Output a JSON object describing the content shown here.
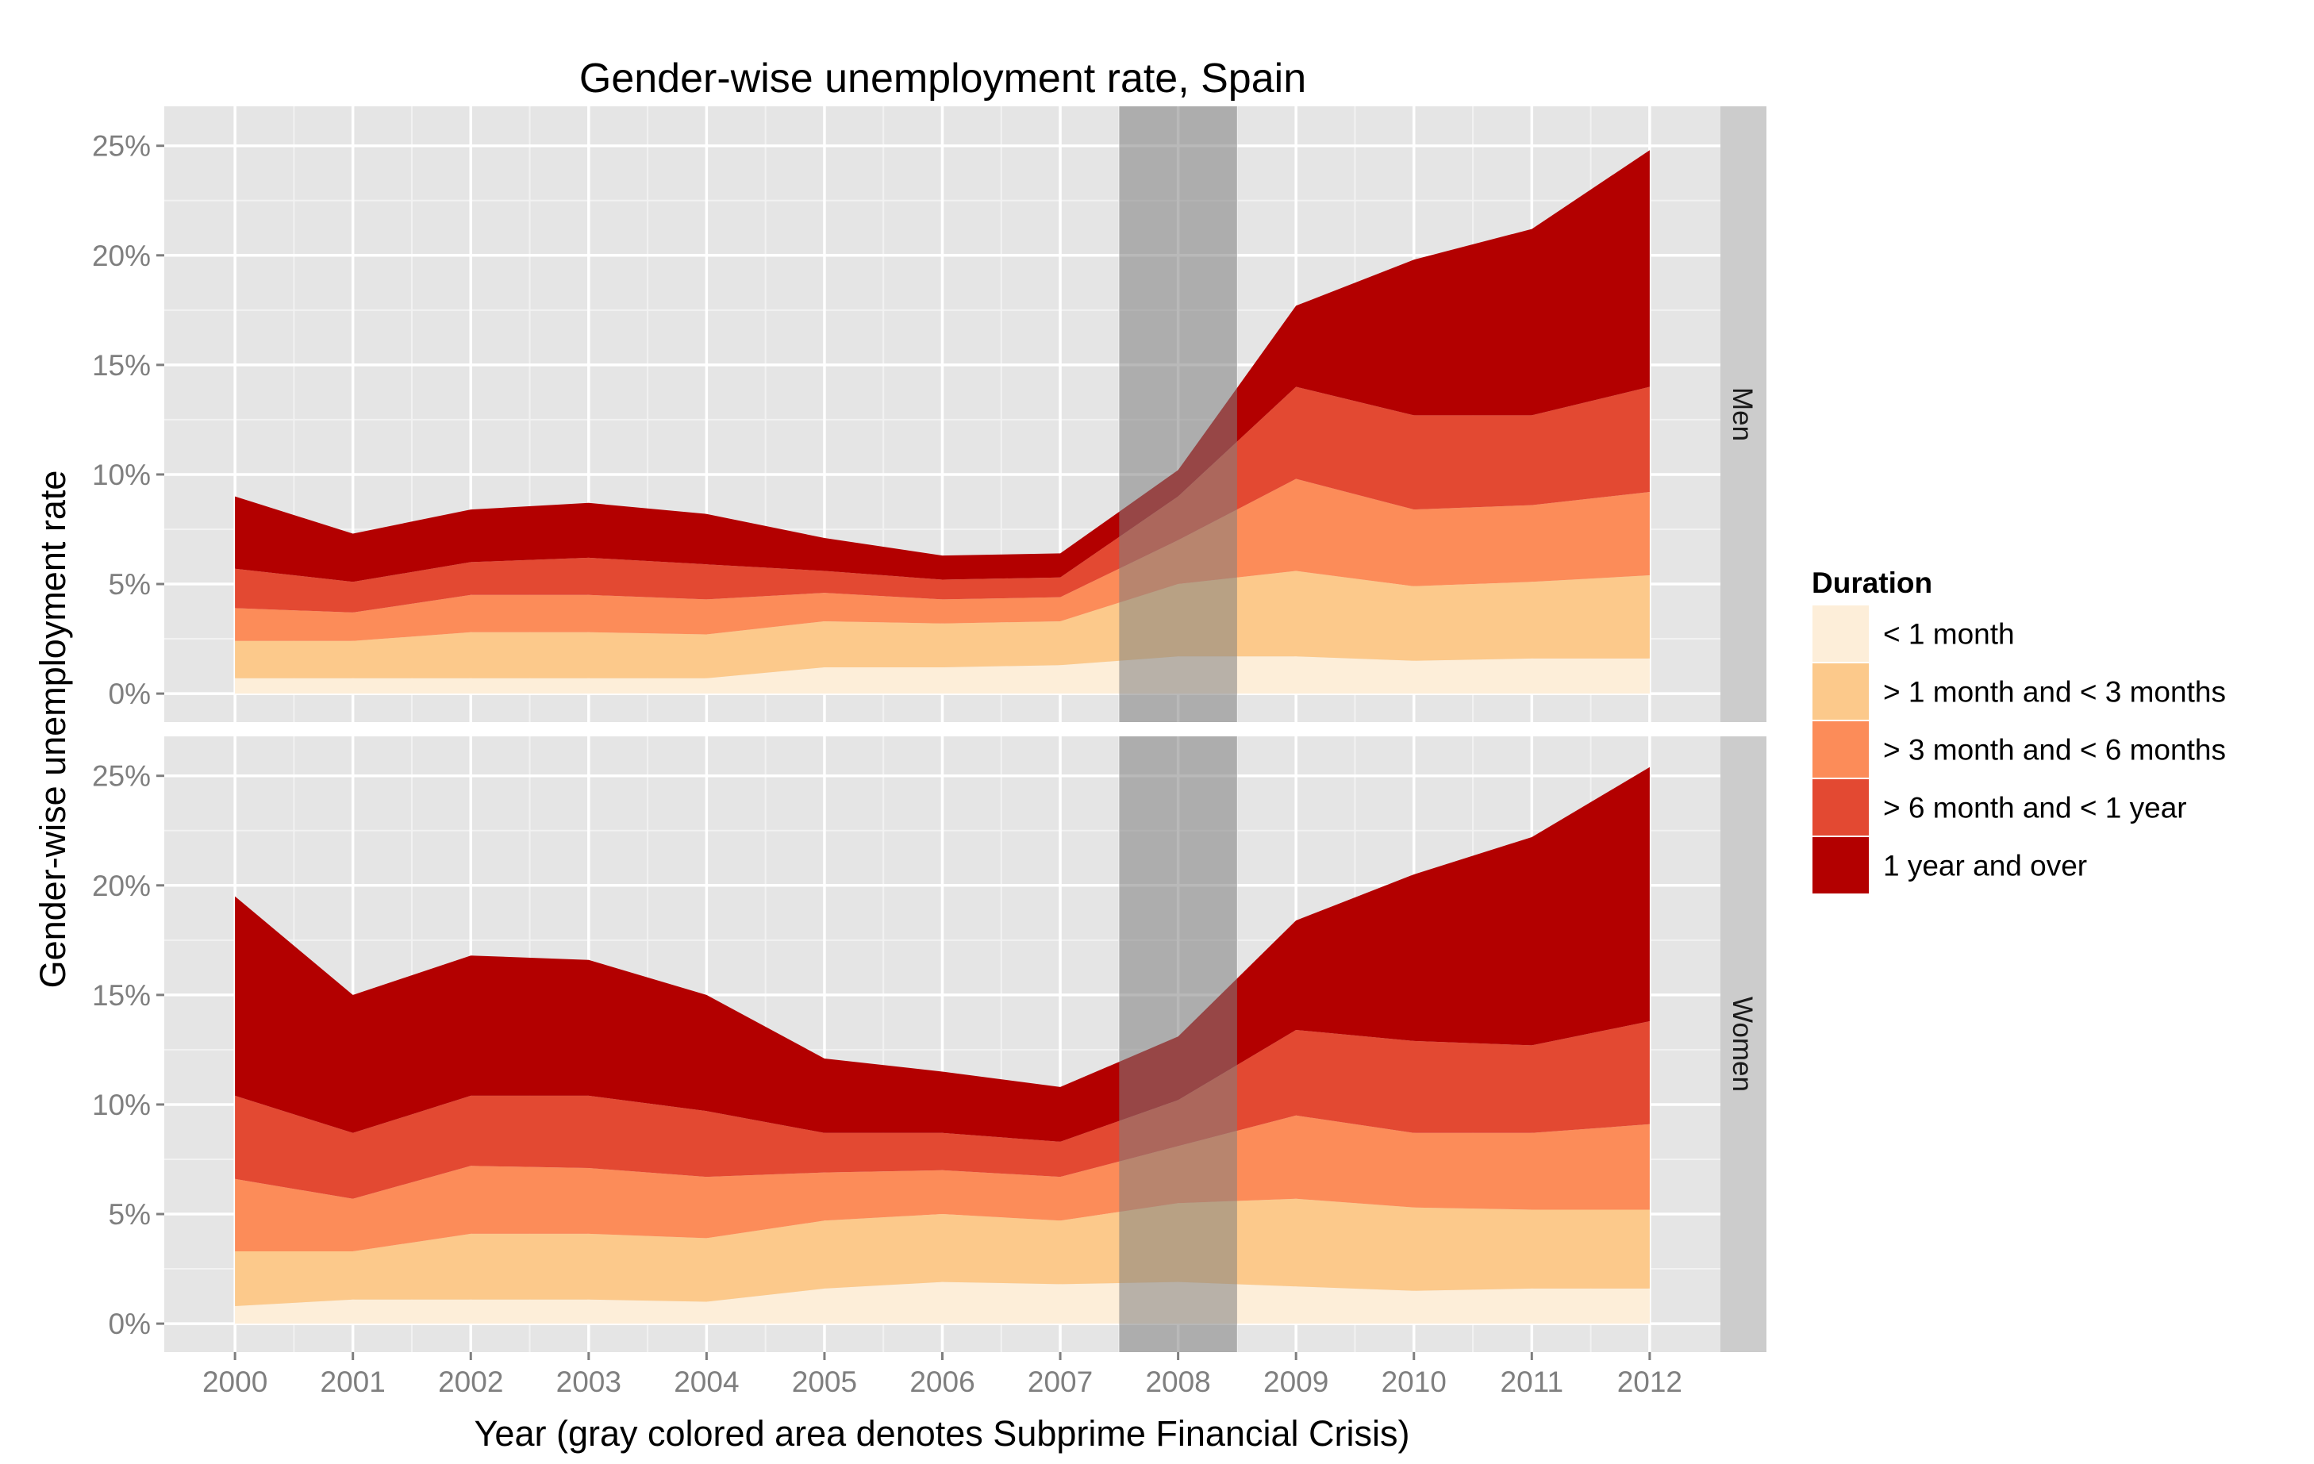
{
  "chart_data": {
    "type": "area",
    "stacked": true,
    "title": "Gender-wise unemployment rate, Spain",
    "xlabel": "Year (gray colored area denotes Subprime Financial Crisis)",
    "ylabel": "Gender-wise unemployment rate",
    "x": [
      2000,
      2001,
      2002,
      2003,
      2004,
      2005,
      2006,
      2007,
      2008,
      2009,
      2010,
      2011,
      2012
    ],
    "x_ticks": [
      "2000",
      "2001",
      "2002",
      "2003",
      "2004",
      "2005",
      "2006",
      "2007",
      "2008",
      "2009",
      "2010",
      "2011",
      "2012"
    ],
    "xlim": [
      1999.4,
      2012.6
    ],
    "ylim": [
      -1.3,
      26.8
    ],
    "y_ticks": [
      0,
      5,
      10,
      15,
      20,
      25
    ],
    "y_tick_labels": [
      "0%",
      "5%",
      "10%",
      "15%",
      "20%",
      "25%"
    ],
    "grid": true,
    "legend": {
      "title": "Duration",
      "position": "right",
      "entries": [
        "< 1 month",
        "> 1 month and < 3 months",
        "> 3 month and < 6 months",
        "> 6 month and < 1 year",
        "1 year and over"
      ]
    },
    "colors": [
      "#fdeed9",
      "#fcc98b",
      "#fc8c59",
      "#e34932",
      "#b30000"
    ],
    "highlight": {
      "from": 2007.5,
      "to": 2008.5,
      "color": "#7f7f7f"
    },
    "panels": [
      {
        "strip": "Men",
        "series": [
          {
            "name": "< 1 month",
            "values": [
              0.7,
              0.7,
              0.7,
              0.7,
              0.7,
              1.2,
              1.2,
              1.3,
              1.7,
              1.7,
              1.5,
              1.6,
              1.6
            ]
          },
          {
            "name": "> 1 month and < 3 months",
            "values": [
              1.7,
              1.7,
              2.1,
              2.1,
              2.0,
              2.1,
              2.0,
              2.0,
              3.3,
              3.9,
              3.4,
              3.5,
              3.8
            ]
          },
          {
            "name": "> 3 month and < 6 months",
            "values": [
              1.5,
              1.3,
              1.7,
              1.7,
              1.6,
              1.3,
              1.1,
              1.1,
              2.0,
              4.2,
              3.5,
              3.5,
              3.8
            ]
          },
          {
            "name": "> 6 month and < 1 year",
            "values": [
              1.8,
              1.4,
              1.5,
              1.7,
              1.6,
              1.0,
              0.9,
              0.9,
              2.0,
              4.2,
              4.3,
              4.1,
              4.8
            ]
          },
          {
            "name": "1 year and over",
            "values": [
              3.3,
              2.2,
              2.4,
              2.5,
              2.3,
              1.5,
              1.1,
              1.1,
              1.2,
              3.7,
              7.1,
              8.5,
              10.8
            ]
          }
        ]
      },
      {
        "strip": "Women",
        "series": [
          {
            "name": "< 1 month",
            "values": [
              0.8,
              1.1,
              1.1,
              1.1,
              1.0,
              1.6,
              1.9,
              1.8,
              1.9,
              1.7,
              1.5,
              1.6,
              1.6
            ]
          },
          {
            "name": "> 1 month and < 3 months",
            "values": [
              2.5,
              2.2,
              3.0,
              3.0,
              2.9,
              3.1,
              3.1,
              2.9,
              3.6,
              4.0,
              3.8,
              3.6,
              3.6
            ]
          },
          {
            "name": "> 3 month and < 6 months",
            "values": [
              3.3,
              2.4,
              3.1,
              3.0,
              2.8,
              2.2,
              2.0,
              2.0,
              2.6,
              3.8,
              3.4,
              3.5,
              3.9
            ]
          },
          {
            "name": "> 6 month and < 1 year",
            "values": [
              3.8,
              3.0,
              3.2,
              3.3,
              3.0,
              1.8,
              1.7,
              1.6,
              2.1,
              3.9,
              4.2,
              4.0,
              4.7
            ]
          },
          {
            "name": "1 year and over",
            "values": [
              9.1,
              6.3,
              6.4,
              6.2,
              5.3,
              3.4,
              2.8,
              2.5,
              2.9,
              5.0,
              7.6,
              9.5,
              11.6
            ]
          }
        ]
      }
    ]
  }
}
